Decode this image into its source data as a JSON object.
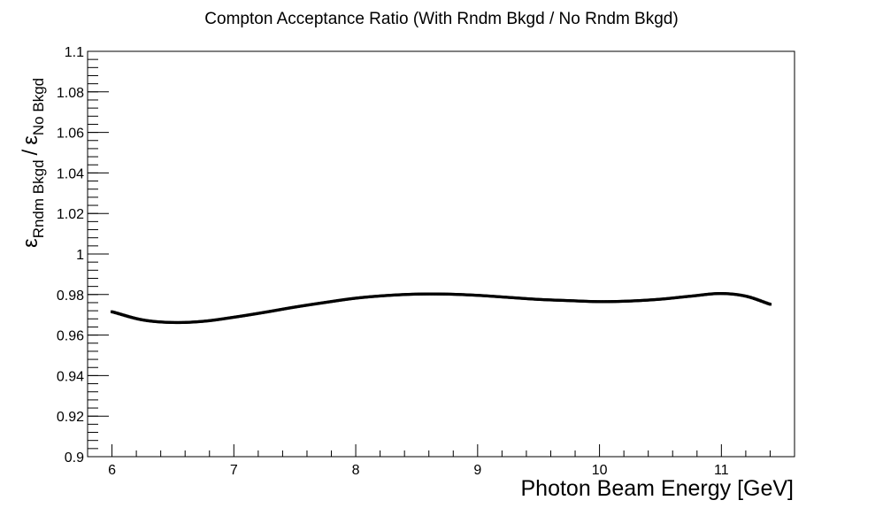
{
  "chart_data": {
    "type": "scatter",
    "title": "Compton Acceptance Ratio (With Rndm Bkgd / No Rndm Bkgd)",
    "xlabel": "Photon Beam Energy [GeV]",
    "ylabel": {
      "numerator_symbol": "ε",
      "numerator_subscript": "Rndm Bkgd",
      "separator": "/",
      "denominator_symbol": "ε",
      "denominator_subscript": "No Bkgd"
    },
    "xlim": [
      5.8,
      11.6
    ],
    "ylim": [
      0.9,
      1.1
    ],
    "xticks": [
      {
        "value": 6,
        "label": "6"
      },
      {
        "value": 7,
        "label": "7"
      },
      {
        "value": 8,
        "label": "8"
      },
      {
        "value": 9,
        "label": "9"
      },
      {
        "value": 10,
        "label": "10"
      },
      {
        "value": 11,
        "label": "11"
      }
    ],
    "yticks": [
      {
        "value": 0.9,
        "label": "0.9"
      },
      {
        "value": 0.92,
        "label": "0.92"
      },
      {
        "value": 0.94,
        "label": "0.94"
      },
      {
        "value": 0.96,
        "label": "0.96"
      },
      {
        "value": 0.98,
        "label": "0.98"
      },
      {
        "value": 1.0,
        "label": "1"
      },
      {
        "value": 1.02,
        "label": "1.02"
      },
      {
        "value": 1.04,
        "label": "1.04"
      },
      {
        "value": 1.06,
        "label": "1.06"
      },
      {
        "value": 1.08,
        "label": "1.08"
      },
      {
        "value": 1.1,
        "label": "1.1"
      }
    ],
    "grid": false,
    "legend": "none",
    "marker_color": "#000000",
    "series": [
      {
        "x": [
          6.0,
          6.25,
          6.5,
          6.75,
          7.0,
          7.25,
          7.5,
          7.75,
          8.0,
          8.25,
          8.5,
          8.75,
          9.0,
          9.25,
          9.5,
          9.75,
          10.0,
          10.25,
          10.5,
          10.75,
          11.0,
          11.2,
          11.4
        ],
        "y": [
          0.9715,
          0.9675,
          0.9662,
          0.9668,
          0.9688,
          0.9712,
          0.9738,
          0.9761,
          0.9782,
          0.9795,
          0.9802,
          0.9802,
          0.9796,
          0.9786,
          0.9776,
          0.977,
          0.9765,
          0.9768,
          0.9777,
          0.9792,
          0.9805,
          0.9792,
          0.9752
        ]
      }
    ]
  }
}
